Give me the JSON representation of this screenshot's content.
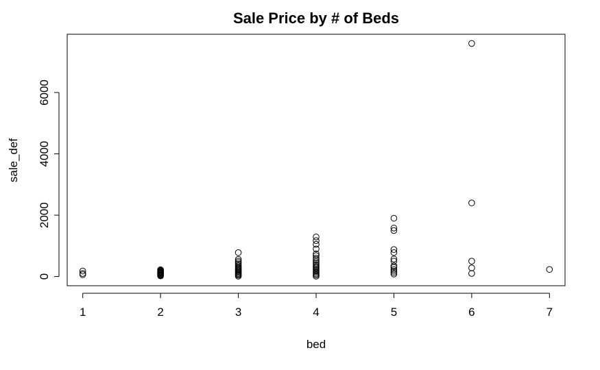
{
  "chart_data": {
    "type": "scatter",
    "title": "Sale Price by # of Beds",
    "xlabel": "bed",
    "ylabel": "sale_def",
    "xlim": [
      0.8,
      7.2
    ],
    "ylim": [
      -300,
      7900
    ],
    "xticks": [
      1,
      2,
      3,
      4,
      5,
      6,
      7
    ],
    "yticks": [
      0,
      2000,
      4000,
      6000
    ],
    "grid": false,
    "legend": "none",
    "points": [
      {
        "x": 1,
        "y": 60
      },
      {
        "x": 1,
        "y": 100
      },
      {
        "x": 1,
        "y": 180
      },
      {
        "x": 2,
        "y": 20
      },
      {
        "x": 2,
        "y": 40
      },
      {
        "x": 2,
        "y": 60
      },
      {
        "x": 2,
        "y": 80
      },
      {
        "x": 2,
        "y": 100
      },
      {
        "x": 2,
        "y": 120
      },
      {
        "x": 2,
        "y": 140
      },
      {
        "x": 2,
        "y": 160
      },
      {
        "x": 2,
        "y": 180
      },
      {
        "x": 2,
        "y": 200
      },
      {
        "x": 2,
        "y": 220
      },
      {
        "x": 3,
        "y": 10
      },
      {
        "x": 3,
        "y": 40
      },
      {
        "x": 3,
        "y": 70
      },
      {
        "x": 3,
        "y": 100
      },
      {
        "x": 3,
        "y": 130
      },
      {
        "x": 3,
        "y": 160
      },
      {
        "x": 3,
        "y": 190
      },
      {
        "x": 3,
        "y": 220
      },
      {
        "x": 3,
        "y": 250
      },
      {
        "x": 3,
        "y": 280
      },
      {
        "x": 3,
        "y": 310
      },
      {
        "x": 3,
        "y": 350
      },
      {
        "x": 3,
        "y": 400
      },
      {
        "x": 3,
        "y": 450
      },
      {
        "x": 3,
        "y": 500
      },
      {
        "x": 3,
        "y": 560
      },
      {
        "x": 3,
        "y": 780
      },
      {
        "x": 4,
        "y": 10
      },
      {
        "x": 4,
        "y": 50
      },
      {
        "x": 4,
        "y": 90
      },
      {
        "x": 4,
        "y": 130
      },
      {
        "x": 4,
        "y": 170
      },
      {
        "x": 4,
        "y": 210
      },
      {
        "x": 4,
        "y": 250
      },
      {
        "x": 4,
        "y": 290
      },
      {
        "x": 4,
        "y": 330
      },
      {
        "x": 4,
        "y": 380
      },
      {
        "x": 4,
        "y": 430
      },
      {
        "x": 4,
        "y": 480
      },
      {
        "x": 4,
        "y": 540
      },
      {
        "x": 4,
        "y": 600
      },
      {
        "x": 4,
        "y": 680
      },
      {
        "x": 4,
        "y": 740
      },
      {
        "x": 4,
        "y": 900
      },
      {
        "x": 4,
        "y": 1050
      },
      {
        "x": 4,
        "y": 1170
      },
      {
        "x": 4,
        "y": 1290
      },
      {
        "x": 5,
        "y": 80
      },
      {
        "x": 5,
        "y": 130
      },
      {
        "x": 5,
        "y": 180
      },
      {
        "x": 5,
        "y": 230
      },
      {
        "x": 5,
        "y": 300
      },
      {
        "x": 5,
        "y": 350
      },
      {
        "x": 5,
        "y": 500
      },
      {
        "x": 5,
        "y": 570
      },
      {
        "x": 5,
        "y": 780
      },
      {
        "x": 5,
        "y": 880
      },
      {
        "x": 5,
        "y": 1500
      },
      {
        "x": 5,
        "y": 1580
      },
      {
        "x": 5,
        "y": 1900
      },
      {
        "x": 6,
        "y": 100
      },
      {
        "x": 6,
        "y": 280
      },
      {
        "x": 6,
        "y": 500
      },
      {
        "x": 6,
        "y": 2400
      },
      {
        "x": 6,
        "y": 7600
      },
      {
        "x": 7,
        "y": 230
      }
    ]
  }
}
